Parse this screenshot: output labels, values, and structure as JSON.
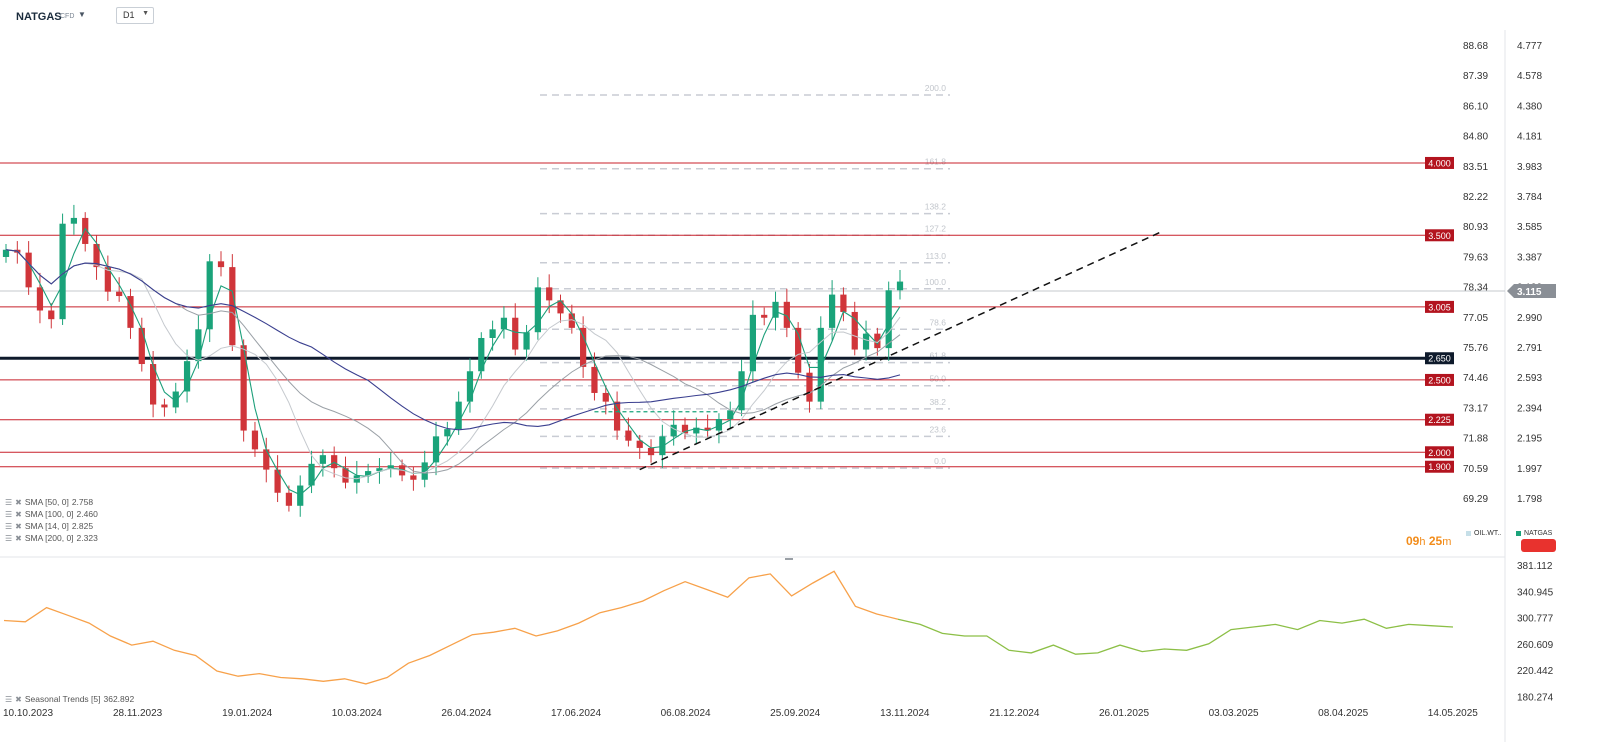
{
  "toolbar": {
    "symbol": "NATGAS",
    "symbol_type": "CFD",
    "timeframe": "D1",
    "caret": "▼"
  },
  "colors": {
    "candle_up": "#1aa37a",
    "candle_down": "#d0353a",
    "level_line": "#c8202b",
    "key_line": "#0e1a2b",
    "sma50": "#1d9f7a",
    "sma100": "#9aa0a6",
    "sma14": "#c5c9ce",
    "sma200": "#3a3f8f",
    "seasonal_past": "#f7a14a",
    "seasonal_future": "#8cbf46",
    "fib": "#c9ccd4",
    "last_badge": "#8a8f96"
  },
  "chart_data": {
    "type": "candlestick",
    "x_tick_labels": [
      "10.10.2023",
      "28.11.2023",
      "19.01.2024",
      "10.03.2024",
      "26.04.2024",
      "17.06.2024",
      "06.08.2024",
      "25.09.2024",
      "13.11.2024",
      "21.12.2024",
      "26.01.2025",
      "03.03.2025",
      "08.04.2025",
      "14.05.2025"
    ],
    "y_tick_labels_left": [
      "88.68",
      "87.39",
      "86.10",
      "84.80",
      "83.51",
      "82.22",
      "80.93",
      "79.63",
      "78.34",
      "77.05",
      "75.76",
      "74.46",
      "73.17",
      "71.88",
      "70.59",
      "69.29"
    ],
    "y_tick_labels_right": [
      "4.777",
      "4.578",
      "4.380",
      "4.181",
      "3.983",
      "3.784",
      "3.585",
      "3.387",
      "3.188",
      "2.990",
      "2.791",
      "2.593",
      "2.394",
      "2.195",
      "1.997",
      "1.798"
    ],
    "price_range": [
      1.67,
      4.85
    ],
    "levels": [
      {
        "value": 4.0,
        "label": "4.000"
      },
      {
        "value": 3.5,
        "label": "3.500"
      },
      {
        "value": 3.005,
        "label": "3.005"
      },
      {
        "value": 2.65,
        "label": "2.650",
        "key": true
      },
      {
        "value": 2.5,
        "label": "2.500"
      },
      {
        "value": 2.225,
        "label": "2.225"
      },
      {
        "value": 2.0,
        "label": "2.000"
      },
      {
        "value": 1.9,
        "label": "1.900"
      }
    ],
    "last_price": {
      "value": 3.115,
      "label": "3.115"
    },
    "fib_levels": [
      {
        "label": "200.0",
        "value": 4.47
      },
      {
        "label": "161.8",
        "value": 3.96
      },
      {
        "label": "138.2",
        "value": 3.65
      },
      {
        "label": "127.2",
        "value": 3.5
      },
      {
        "label": "113.0",
        "value": 3.31
      },
      {
        "label": "100.0",
        "value": 3.13
      },
      {
        "label": "78.6",
        "value": 2.85
      },
      {
        "label": "61.8",
        "value": 2.62
      },
      {
        "label": "50.0",
        "value": 2.46
      },
      {
        "label": "38.2",
        "value": 2.3
      },
      {
        "label": "23.6",
        "value": 2.11
      },
      {
        "label": "0.0",
        "value": 1.89
      }
    ],
    "close_path": [
      3.4,
      3.38,
      3.14,
      2.98,
      2.92,
      3.58,
      3.62,
      3.44,
      3.28,
      3.11,
      3.08,
      2.86,
      2.61,
      2.33,
      2.31,
      2.42,
      2.63,
      2.85,
      3.32,
      3.28,
      2.74,
      2.15,
      2.02,
      1.88,
      1.72,
      1.63,
      1.77,
      1.92,
      1.98,
      1.89,
      1.79,
      1.84,
      1.87,
      1.89,
      1.91,
      1.84,
      1.81,
      1.93,
      2.11,
      2.16,
      2.35,
      2.56,
      2.79,
      2.85,
      2.93,
      2.71,
      2.83,
      3.14,
      3.05,
      2.96,
      2.86,
      2.59,
      2.41,
      2.35,
      2.15,
      2.08,
      2.03,
      1.98,
      2.11,
      2.19,
      2.13,
      2.17,
      2.15,
      2.23,
      2.29,
      2.56,
      2.95,
      2.93,
      3.04,
      2.86,
      2.55,
      2.35,
      2.86,
      3.09,
      2.97,
      2.71,
      2.82,
      2.72,
      3.12,
      3.18
    ],
    "sma_legend": [
      {
        "label": "SMA [50, 0]",
        "value": "2.758"
      },
      {
        "label": "SMA [100, 0]",
        "value": "2.460"
      },
      {
        "label": "SMA [14, 0]",
        "value": "2.825"
      },
      {
        "label": "SMA [200, 0]",
        "value": "2.323"
      }
    ],
    "seasonal": {
      "legend_label": "Seasonal  Trends [5]",
      "legend_value": "362.892",
      "y_tick_labels": [
        "381.112",
        "340.945",
        "300.777",
        "260.609",
        "220.442",
        "180.274"
      ],
      "y_range": [
        180.274,
        381.112
      ],
      "past_path": [
        300,
        298,
        320,
        308,
        296,
        276,
        262,
        268,
        254,
        246,
        222,
        214,
        218,
        212,
        210,
        206,
        210,
        202,
        212,
        234,
        246,
        262,
        278,
        282,
        288,
        276,
        284,
        296,
        312,
        320,
        330,
        346,
        360,
        348,
        336,
        366,
        372,
        338,
        358,
        376,
        322,
        310,
        302
      ],
      "future_path": [
        302,
        294,
        280,
        276,
        276,
        254,
        250,
        262,
        248,
        250,
        262,
        252,
        256,
        254,
        264,
        286,
        290,
        294,
        286,
        300,
        296,
        302,
        288,
        294,
        292,
        290
      ]
    }
  },
  "timer": {
    "hours": "09",
    "h_unit": "h",
    "minutes": "25",
    "m_unit": "m"
  },
  "mini_legend": {
    "oil": "OIL.WT..",
    "natgas": "NATGAS"
  }
}
